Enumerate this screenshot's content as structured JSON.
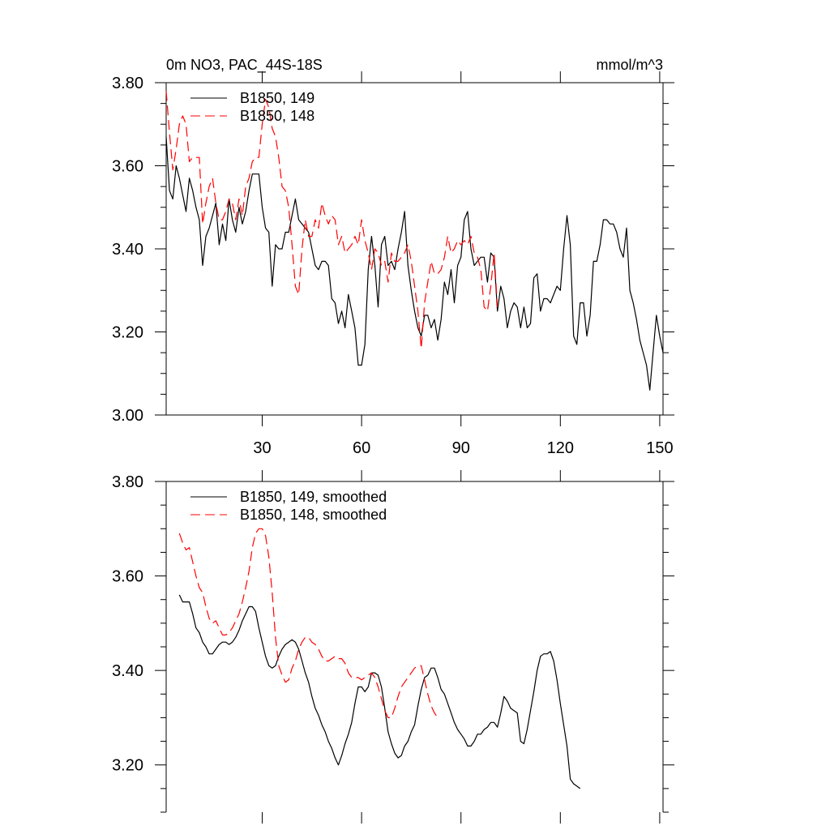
{
  "chart_data": [
    {
      "type": "line",
      "title": "0m NO3, PAC_44S-18S",
      "units": "mmol/m^3",
      "xlim": [
        1,
        151
      ],
      "ylim": [
        3.0,
        3.8
      ],
      "y_ticks": [
        "3.00",
        "3.20",
        "3.40",
        "3.60",
        "3.80"
      ],
      "y_tick_values": [
        3.0,
        3.2,
        3.4,
        3.6,
        3.8
      ],
      "x_ticks": [
        "30",
        "60",
        "90",
        "120",
        "150"
      ],
      "x_tick_values": [
        30,
        60,
        90,
        120,
        150
      ],
      "legend_position": "top-left",
      "series": [
        {
          "name": "B1850, 149",
          "color": "#000000",
          "dash": "solid",
          "x_start": 1,
          "values": [
            3.67,
            3.54,
            3.52,
            3.6,
            3.57,
            3.53,
            3.49,
            3.57,
            3.54,
            3.5,
            3.47,
            3.36,
            3.43,
            3.45,
            3.48,
            3.51,
            3.41,
            3.46,
            3.42,
            3.52,
            3.47,
            3.44,
            3.5,
            3.46,
            3.49,
            3.54,
            3.58,
            3.58,
            3.58,
            3.5,
            3.45,
            3.44,
            3.31,
            3.41,
            3.4,
            3.4,
            3.44,
            3.44,
            3.48,
            3.52,
            3.47,
            3.46,
            3.45,
            3.44,
            3.4,
            3.36,
            3.35,
            3.37,
            3.37,
            3.36,
            3.28,
            3.27,
            3.22,
            3.25,
            3.21,
            3.29,
            3.25,
            3.21,
            3.12,
            3.12,
            3.17,
            3.35,
            3.43,
            3.36,
            3.26,
            3.41,
            3.43,
            3.36,
            3.37,
            3.35,
            3.4,
            3.44,
            3.49,
            3.36,
            3.3,
            3.25,
            3.21,
            3.19,
            3.24,
            3.24,
            3.21,
            3.23,
            3.18,
            3.23,
            3.32,
            3.29,
            3.35,
            3.27,
            3.36,
            3.38,
            3.47,
            3.49,
            3.4,
            3.36,
            3.37,
            3.38,
            3.38,
            3.32,
            3.39,
            3.38,
            3.25,
            3.31,
            3.28,
            3.21,
            3.25,
            3.27,
            3.26,
            3.21,
            3.26,
            3.21,
            3.22,
            3.33,
            3.34,
            3.25,
            3.28,
            3.28,
            3.27,
            3.29,
            3.31,
            3.3,
            3.4,
            3.48,
            3.41,
            3.19,
            3.17,
            3.27,
            3.27,
            3.19,
            3.24,
            3.37,
            3.37,
            3.41,
            3.47,
            3.47,
            3.46,
            3.46,
            3.44,
            3.4,
            3.38,
            3.45,
            3.3,
            3.27,
            3.23,
            3.18,
            3.15,
            3.12,
            3.06,
            3.15,
            3.24,
            3.19,
            3.15
          ]
        },
        {
          "name": "B1850, 148",
          "color": "#ff0000",
          "dash": "dashed",
          "x_start": 1,
          "values": [
            3.78,
            3.68,
            3.59,
            3.64,
            3.7,
            3.72,
            3.7,
            3.61,
            3.62,
            3.62,
            3.62,
            3.46,
            3.51,
            3.55,
            3.57,
            3.51,
            3.47,
            3.47,
            3.49,
            3.52,
            3.51,
            3.47,
            3.52,
            3.48,
            3.55,
            3.57,
            3.61,
            3.62,
            3.62,
            3.7,
            3.76,
            3.74,
            3.69,
            3.67,
            3.62,
            3.55,
            3.54,
            3.5,
            3.41,
            3.31,
            3.29,
            3.4,
            3.47,
            3.43,
            3.43,
            3.47,
            3.45,
            3.51,
            3.48,
            3.46,
            3.48,
            3.47,
            3.41,
            3.43,
            3.39,
            3.4,
            3.41,
            3.43,
            3.41,
            3.47,
            3.42,
            3.39,
            3.35,
            3.4,
            3.39,
            3.36,
            3.37,
            3.32,
            3.39,
            3.37,
            3.37,
            3.38,
            3.39,
            3.41,
            3.37,
            3.31,
            3.25,
            3.16,
            3.27,
            3.32,
            3.37,
            3.34,
            3.34,
            3.35,
            3.38,
            3.43,
            3.39,
            3.4,
            3.42,
            3.41,
            3.42,
            3.41,
            3.43,
            3.39,
            3.38,
            3.35,
            3.26,
            3.25,
            3.31,
            3.39,
            3.26
          ]
        }
      ]
    },
    {
      "type": "line",
      "xlim": [
        1,
        151
      ],
      "ylim": [
        3.1,
        3.8
      ],
      "y_ticks": [
        "3.20",
        "3.40",
        "3.60",
        "3.80"
      ],
      "y_tick_values": [
        3.2,
        3.4,
        3.6,
        3.8
      ],
      "x_tick_values": [
        30,
        60,
        90,
        120,
        150
      ],
      "legend_position": "top-left",
      "series": [
        {
          "name": "B1850, 149, smoothed",
          "color": "#000000",
          "dash": "solid",
          "x_start": 5,
          "values": [
            3.56,
            3.545,
            3.545,
            3.545,
            3.52,
            3.49,
            3.48,
            3.46,
            3.45,
            3.435,
            3.435,
            3.445,
            3.455,
            3.46,
            3.46,
            3.455,
            3.46,
            3.47,
            3.485,
            3.505,
            3.52,
            3.535,
            3.535,
            3.525,
            3.49,
            3.46,
            3.43,
            3.41,
            3.405,
            3.41,
            3.43,
            3.445,
            3.455,
            3.46,
            3.465,
            3.46,
            3.445,
            3.42,
            3.395,
            3.375,
            3.345,
            3.32,
            3.305,
            3.285,
            3.27,
            3.25,
            3.235,
            3.215,
            3.2,
            3.22,
            3.245,
            3.265,
            3.29,
            3.33,
            3.365,
            3.365,
            3.355,
            3.365,
            3.395,
            3.395,
            3.39,
            3.365,
            3.32,
            3.27,
            3.245,
            3.225,
            3.215,
            3.22,
            3.24,
            3.25,
            3.27,
            3.285,
            3.325,
            3.36,
            3.385,
            3.39,
            3.405,
            3.405,
            3.385,
            3.36,
            3.35,
            3.33,
            3.31,
            3.29,
            3.275,
            3.265,
            3.255,
            3.24,
            3.24,
            3.25,
            3.265,
            3.265,
            3.275,
            3.28,
            3.29,
            3.29,
            3.28,
            3.31,
            3.345,
            3.335,
            3.32,
            3.315,
            3.31,
            3.25,
            3.245,
            3.275,
            3.315,
            3.355,
            3.4,
            3.43,
            3.435,
            3.435,
            3.44,
            3.42,
            3.38,
            3.33,
            3.285,
            3.24,
            3.17,
            3.16,
            3.155,
            3.15
          ]
        },
        {
          "name": "B1850, 148, smoothed",
          "color": "#ff0000",
          "dash": "dashed",
          "x_start": 5,
          "values": [
            3.69,
            3.67,
            3.655,
            3.66,
            3.63,
            3.6,
            3.575,
            3.565,
            3.535,
            3.51,
            3.5,
            3.505,
            3.49,
            3.475,
            3.475,
            3.48,
            3.49,
            3.505,
            3.52,
            3.545,
            3.575,
            3.61,
            3.66,
            3.69,
            3.7,
            3.7,
            3.685,
            3.64,
            3.565,
            3.47,
            3.41,
            3.39,
            3.375,
            3.38,
            3.405,
            3.42,
            3.445,
            3.46,
            3.47,
            3.47,
            3.46,
            3.455,
            3.445,
            3.43,
            3.42,
            3.42,
            3.425,
            3.43,
            3.425,
            3.425,
            3.415,
            3.395,
            3.385,
            3.385,
            3.385,
            3.38,
            3.385,
            3.39,
            3.395,
            3.385,
            3.365,
            3.34,
            3.315,
            3.3,
            3.3,
            3.32,
            3.345,
            3.365,
            3.375,
            3.385,
            3.395,
            3.405,
            3.41,
            3.41,
            3.38,
            3.35,
            3.325,
            3.31,
            3.3
          ]
        }
      ]
    }
  ]
}
